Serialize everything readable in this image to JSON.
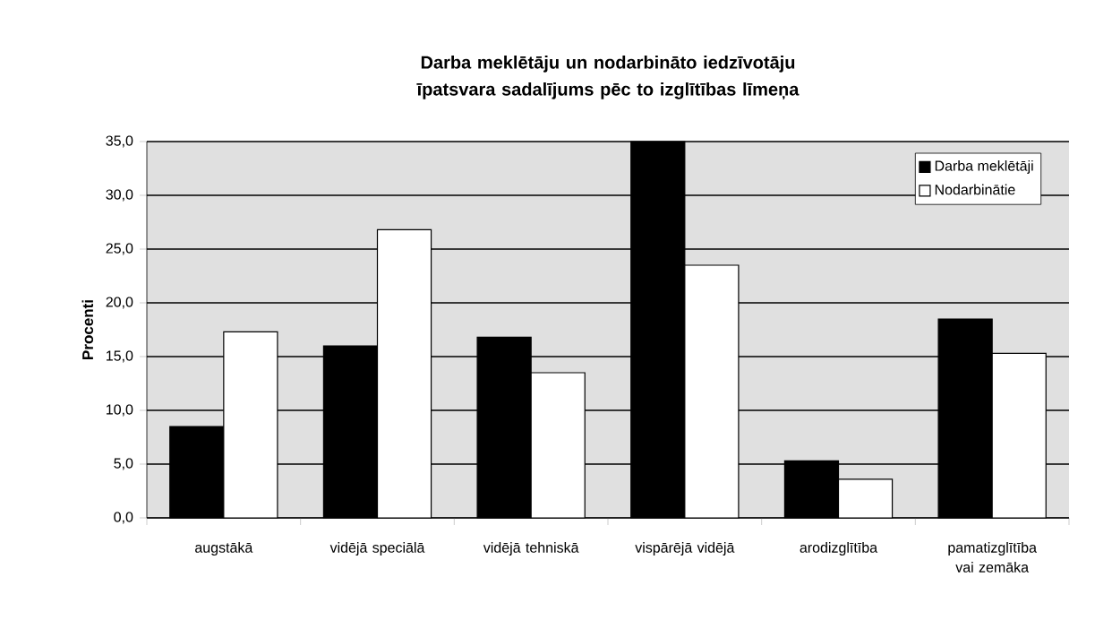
{
  "chart_data": {
    "type": "bar",
    "title": "Darba meklētāju un nodarbināto iedzīvotāju īpatsvara sadalījums pēc to izglītības līmeņa",
    "ylabel": "Procenti",
    "categories": [
      "augstākā",
      "vidējā speciālā",
      "vidējā tehniskā",
      "vispārējā vidējā",
      "arodizglītība",
      "pamatizglītība vai zemāka"
    ],
    "series": [
      {
        "name": "Darba meklētāji",
        "color": "#000000",
        "values": [
          8.5,
          16.0,
          16.8,
          35.0,
          5.3,
          18.5
        ]
      },
      {
        "name": "Nodarbinātie",
        "color": "#ffffff",
        "values": [
          17.3,
          26.8,
          13.5,
          23.5,
          3.6,
          15.3
        ]
      }
    ],
    "ylim": [
      0,
      35
    ],
    "yticks": [
      {
        "value": 0,
        "label": "0,0"
      },
      {
        "value": 5,
        "label": "5,0"
      },
      {
        "value": 10,
        "label": "10,0"
      },
      {
        "value": 15,
        "label": "15,0"
      },
      {
        "value": 20,
        "label": "20,0"
      },
      {
        "value": 25,
        "label": "25,0"
      },
      {
        "value": 30,
        "label": "30,0"
      },
      {
        "value": 35,
        "label": "35,0"
      }
    ],
    "grid": "y",
    "legend": "top right"
  }
}
